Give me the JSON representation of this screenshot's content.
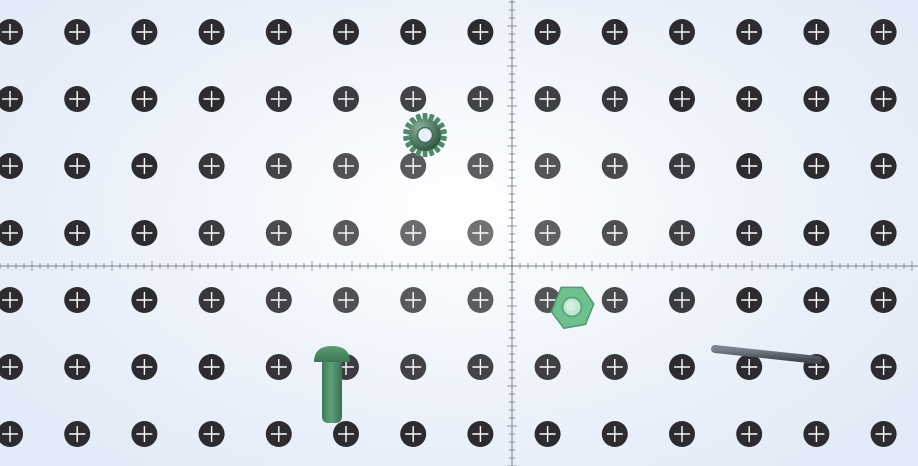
{
  "scene": {
    "background_colors": [
      "#ffffff",
      "#e3ebf8"
    ],
    "hole_color": "#2c2c30",
    "crosshair_color": "#ffffff",
    "ruler_color": "#5a5f6a"
  },
  "pieces": [
    {
      "name": "gear",
      "icon": "gear-icon",
      "color": "#4f8a6a"
    },
    {
      "name": "hex-nut",
      "icon": "hex-nut-icon",
      "color": "#7cc79a"
    },
    {
      "name": "rivet",
      "icon": "rivet-icon",
      "color": "#4a8a62"
    },
    {
      "name": "metal-rod",
      "icon": "rod-icon",
      "color": "#5a6068"
    }
  ]
}
